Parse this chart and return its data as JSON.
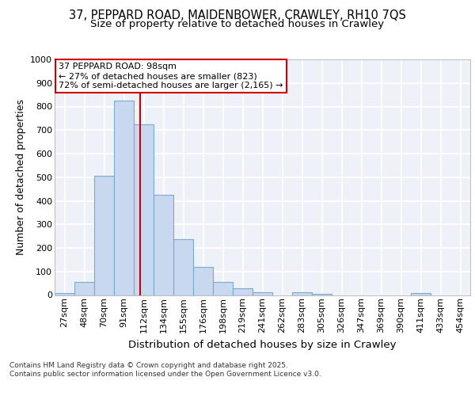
{
  "title_line1": "37, PEPPARD ROAD, MAIDENBOWER, CRAWLEY, RH10 7QS",
  "title_line2": "Size of property relative to detached houses in Crawley",
  "xlabel": "Distribution of detached houses by size in Crawley",
  "ylabel": "Number of detached properties",
  "categories": [
    "27sqm",
    "48sqm",
    "70sqm",
    "91sqm",
    "112sqm",
    "134sqm",
    "155sqm",
    "176sqm",
    "198sqm",
    "219sqm",
    "241sqm",
    "262sqm",
    "283sqm",
    "305sqm",
    "326sqm",
    "347sqm",
    "369sqm",
    "390sqm",
    "411sqm",
    "433sqm",
    "454sqm"
  ],
  "values": [
    8,
    57,
    505,
    825,
    725,
    425,
    238,
    118,
    55,
    30,
    13,
    0,
    13,
    5,
    0,
    0,
    0,
    0,
    8,
    0,
    0
  ],
  "bar_color": "#c8d8ee",
  "bar_edge_color": "#7aaad0",
  "vline_x": 3.82,
  "vline_color": "#cc0000",
  "annotation_text": "37 PEPPARD ROAD: 98sqm\n← 27% of detached houses are smaller (823)\n72% of semi-detached houses are larger (2,165) →",
  "annotation_box_color": "#cc0000",
  "annotation_box_fill": "#ffffff",
  "ylim": [
    0,
    1000
  ],
  "yticks": [
    0,
    100,
    200,
    300,
    400,
    500,
    600,
    700,
    800,
    900,
    1000
  ],
  "bg_color": "#eef2f8",
  "grid_color": "#ffffff",
  "footer_text": "Contains HM Land Registry data © Crown copyright and database right 2025.\nContains public sector information licensed under the Open Government Licence v3.0.",
  "title_fontsize": 10.5,
  "subtitle_fontsize": 9.5,
  "axis_label_fontsize": 9,
  "tick_fontsize": 8,
  "annotation_fontsize": 8,
  "footer_fontsize": 6.5
}
